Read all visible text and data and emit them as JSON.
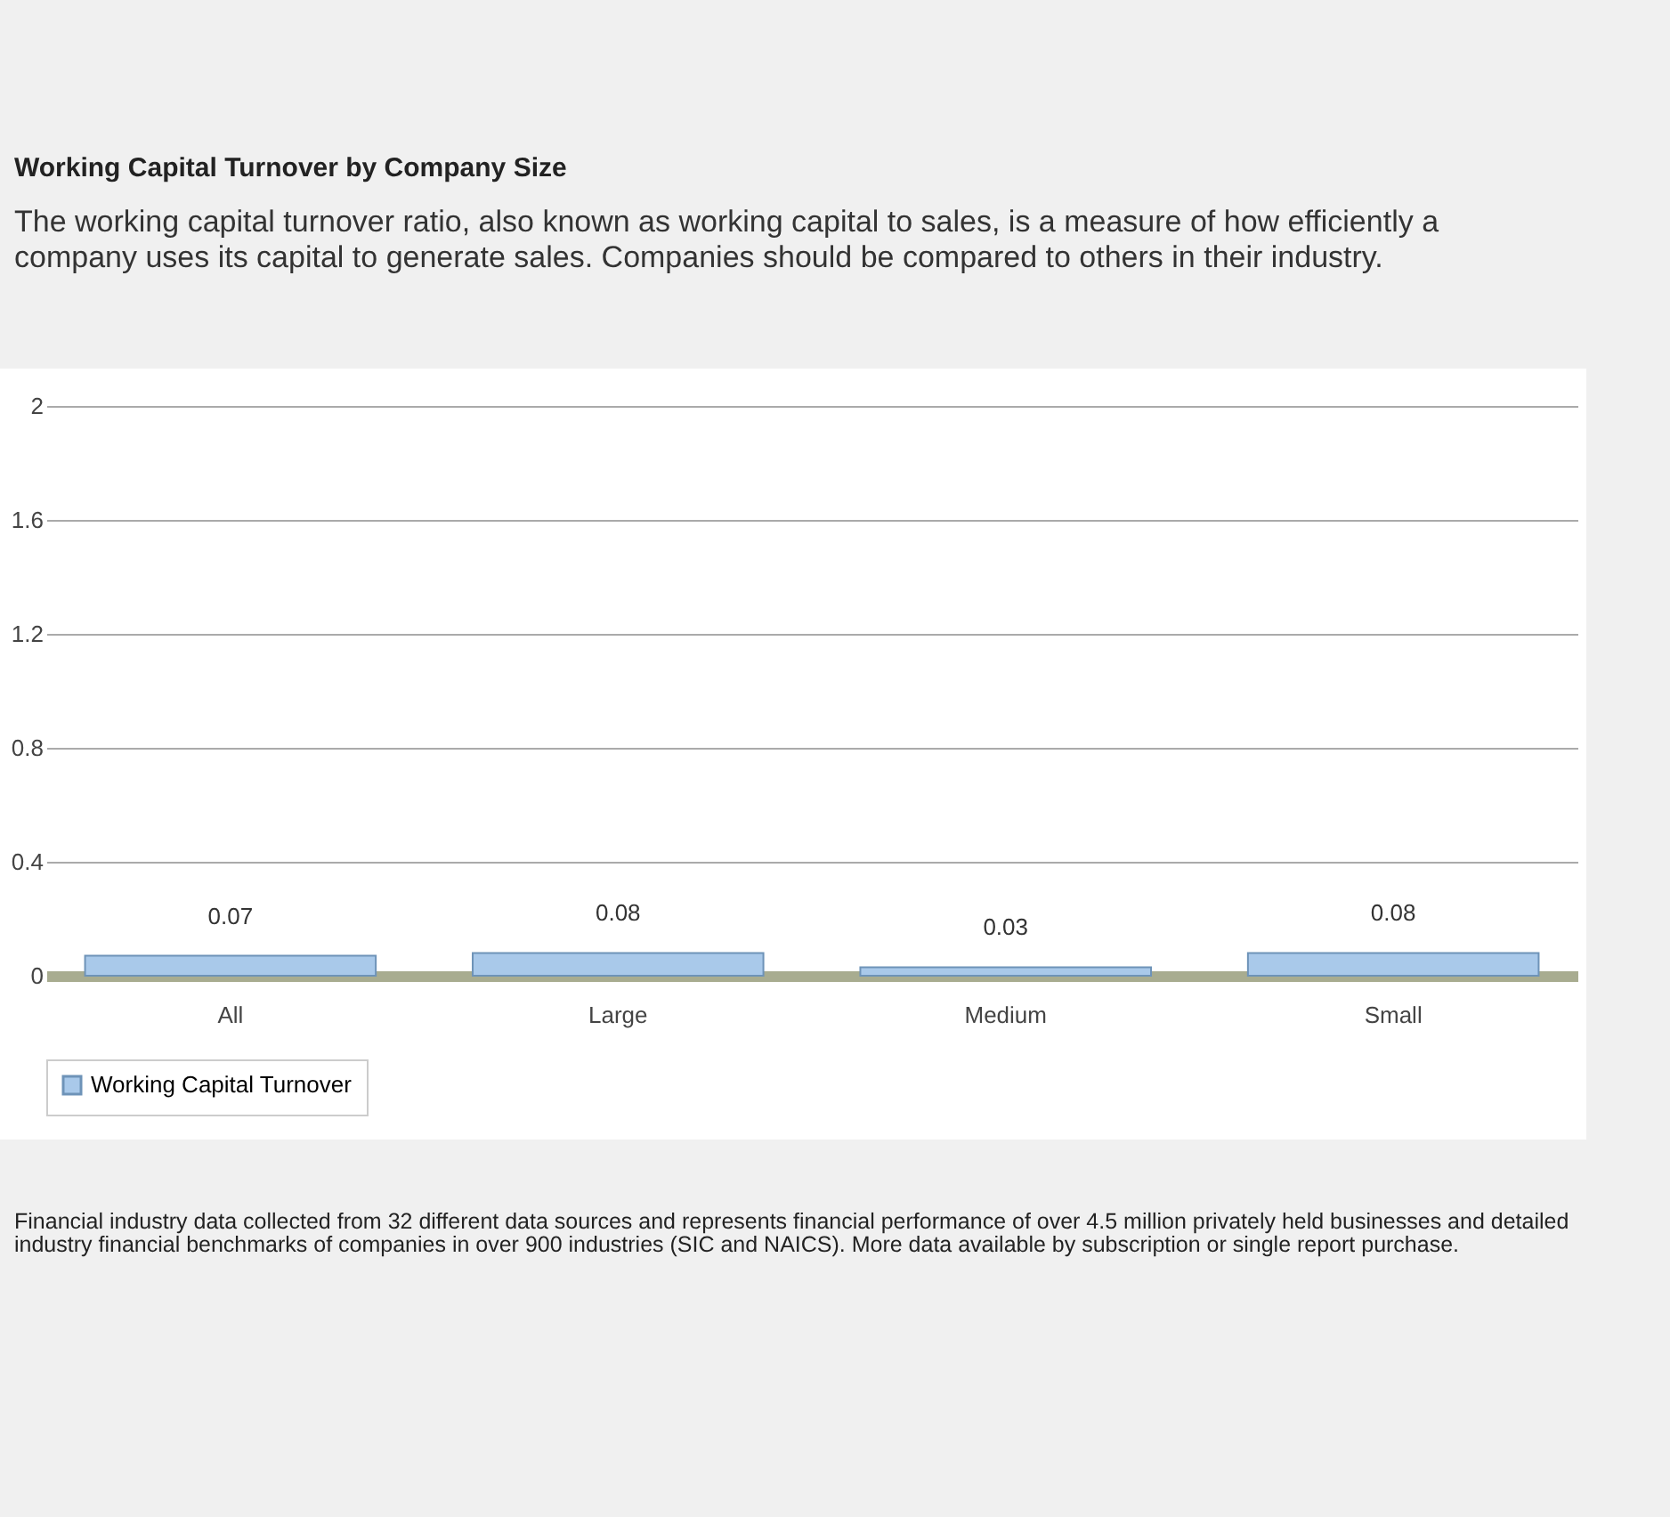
{
  "chart_data": {
    "type": "bar",
    "title": "Working Capital Turnover by Company Size",
    "subtitle": "The working capital turnover ratio, also known as working capital to sales, is a measure of how efficiently a company uses its capital to generate sales. Companies should be compared to others in their industry.",
    "categories": [
      "All",
      "Large",
      "Medium",
      "Small"
    ],
    "series": [
      {
        "name": "Working Capital Turnover",
        "color": "#a9c9ea",
        "values": [
          0.07,
          0.08,
          0.03,
          0.08
        ]
      }
    ],
    "ylim": [
      0,
      2
    ],
    "yticks": [
      0,
      0.4,
      0.8,
      1.2,
      1.6,
      2
    ],
    "grid": "y",
    "legend": "bottom",
    "data_labels": true,
    "annotations": [
      "Financial industry data collected from 32 different data sources and represents financial performance of over 4.5 million privately held businesses and detailed industry financial benchmarks of companies in over 900 industries (SIC and NAICS). More data available by subscription or single report purchase."
    ]
  }
}
